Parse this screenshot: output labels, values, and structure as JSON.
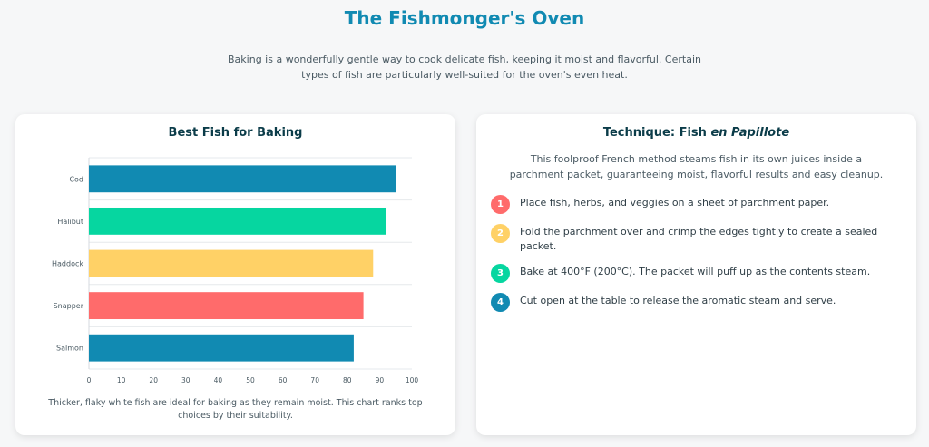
{
  "header": {
    "title": "The Fishmonger's Oven",
    "intro": "Baking is a wonderfully gentle way to cook delicate fish, keeping it moist and flavorful. Certain types of fish are particularly well-suited for the oven's even heat."
  },
  "chart_card": {
    "title": "Best Fish for Baking",
    "caption": "Thicker, flaky white fish are ideal for baking as they remain moist. This chart ranks top choices by their suitability."
  },
  "chart_data": {
    "type": "bar",
    "orientation": "horizontal",
    "categories": [
      "Cod",
      "Halibut",
      "Haddock",
      "Snapper",
      "Salmon"
    ],
    "values": [
      95,
      92,
      88,
      85,
      82
    ],
    "colors": [
      "#118ab2",
      "#06d6a0",
      "#ffd166",
      "#ff6b6b",
      "#118ab2"
    ],
    "xlim": [
      0,
      100
    ],
    "xticks": [
      "0",
      "10",
      "20",
      "30",
      "40",
      "50",
      "60",
      "70",
      "80",
      "90",
      "100"
    ],
    "grid": true
  },
  "technique_card": {
    "title_prefix": "Technique: Fish ",
    "title_emphasis": "en Papillote",
    "description": "This foolproof French method steams fish in its own juices inside a parchment packet, guaranteeing moist, flavorful results and easy cleanup.",
    "steps": [
      {
        "number": "1",
        "text": "Place fish, herbs, and veggies on a sheet of parchment paper.",
        "color": "#ff6b6b"
      },
      {
        "number": "2",
        "text": "Fold the parchment over and crimp the edges tightly to create a sealed packet.",
        "color": "#ffd166"
      },
      {
        "number": "3",
        "text": "Bake at 400°F (200°C). The packet will puff up as the contents steam.",
        "color": "#06d6a0"
      },
      {
        "number": "4",
        "text": "Cut open at the table to release the aromatic steam and serve.",
        "color": "#118ab2"
      }
    ]
  }
}
